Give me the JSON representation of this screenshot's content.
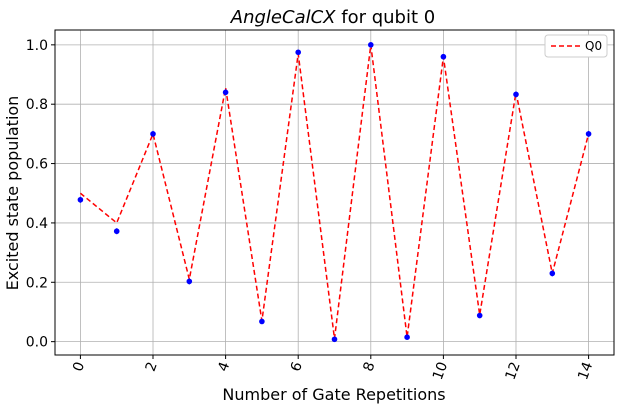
{
  "chart_data": {
    "type": "scatter",
    "title_italic": "AngleCalCX",
    "title_rest": " for qubit 0",
    "xlabel": "Number of Gate Repetitions",
    "ylabel": "Excited state population",
    "xlim": [
      -0.7,
      14.7
    ],
    "ylim": [
      -0.045,
      1.05
    ],
    "grid": true,
    "legend_position": "top-right",
    "x_ticks": [
      0,
      2,
      4,
      6,
      8,
      10,
      12,
      14
    ],
    "y_ticks": [
      0.0,
      0.2,
      0.4,
      0.6,
      0.8,
      1.0
    ],
    "y_tick_labels": [
      "0.0",
      "0.2",
      "0.4",
      "0.6",
      "0.8",
      "1.0"
    ],
    "series": [
      {
        "name": "Q0",
        "kind": "fit",
        "color": "#ff0000",
        "linestyle": "dashed",
        "x": [
          0,
          1,
          2,
          3,
          4,
          5,
          6,
          7,
          8,
          9,
          10,
          11,
          12,
          13,
          14
        ],
        "y": [
          0.5,
          0.4,
          0.7,
          0.21,
          0.855,
          0.07,
          0.97,
          0.01,
          1.0,
          0.015,
          0.96,
          0.09,
          0.84,
          0.23,
          0.7
        ]
      },
      {
        "kind": "data",
        "color": "#0000ff",
        "x": [
          0,
          1,
          2,
          3,
          4,
          5,
          6,
          7,
          8,
          9,
          10,
          11,
          12,
          13,
          14
        ],
        "y": [
          0.478,
          0.372,
          0.7,
          0.203,
          0.84,
          0.068,
          0.975,
          0.008,
          1.0,
          0.015,
          0.96,
          0.088,
          0.833,
          0.23,
          0.7
        ],
        "err": [
          0.01,
          0.01,
          0.01,
          0.01,
          0.01,
          0.005,
          0.005,
          0.005,
          0.005,
          0.005,
          0.005,
          0.005,
          0.01,
          0.01,
          0.01
        ]
      }
    ]
  }
}
